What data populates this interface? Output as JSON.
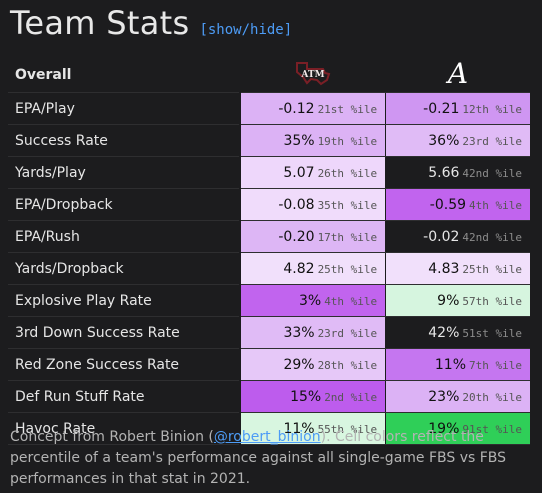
{
  "header": {
    "title": "Team Stats",
    "toggle_label": "[show/hide]"
  },
  "table": {
    "section_label": "Overall",
    "teams": [
      {
        "icon": "texas-am-logo-icon",
        "color": "#7a1f26",
        "logo_text": "ATM"
      },
      {
        "icon": "alabama-logo-icon",
        "color": "#ffffff",
        "logo_text": "A"
      }
    ],
    "rows": [
      {
        "metric": "EPA/Play",
        "a": {
          "value": "-0.12",
          "pct": "21st %ile",
          "bg": "#dcb2f5"
        },
        "b": {
          "value": "-0.21",
          "pct": "12th %ile",
          "bg": "#cf96f2"
        }
      },
      {
        "metric": "Success Rate",
        "a": {
          "value": "35%",
          "pct": "19th %ile",
          "bg": "#dcb2f5"
        },
        "b": {
          "value": "36%",
          "pct": "23rd %ile",
          "bg": "#e0bbf6"
        }
      },
      {
        "metric": "Yards/Play",
        "a": {
          "value": "5.07",
          "pct": "26th %ile",
          "bg": "#eed7fb"
        },
        "b": {
          "value": "5.66",
          "pct": "42nd %ile",
          "bg": ""
        }
      },
      {
        "metric": "EPA/Dropback",
        "a": {
          "value": "-0.08",
          "pct": "35th %ile",
          "bg": "#f0dcfb"
        },
        "b": {
          "value": "-0.59",
          "pct": "4th %ile",
          "bg": "#c164ee"
        }
      },
      {
        "metric": "EPA/Rush",
        "a": {
          "value": "-0.20",
          "pct": "17th %ile",
          "bg": "#ddb6f5"
        },
        "b": {
          "value": "-0.02",
          "pct": "42nd %ile",
          "bg": ""
        }
      },
      {
        "metric": "Yards/Dropback",
        "a": {
          "value": "4.82",
          "pct": "25th %ile",
          "bg": "#f1e0fb"
        },
        "b": {
          "value": "4.83",
          "pct": "25th %ile",
          "bg": "#f1e0fb"
        }
      },
      {
        "metric": "Explosive Play Rate",
        "a": {
          "value": "3%",
          "pct": "4th %ile",
          "bg": "#c164ee"
        },
        "b": {
          "value": "9%",
          "pct": "57th %ile",
          "bg": "#d6f5df"
        }
      },
      {
        "metric": "3rd Down Success Rate",
        "a": {
          "value": "33%",
          "pct": "23rd %ile",
          "bg": "#e0bbf6"
        },
        "b": {
          "value": "42%",
          "pct": "51st %ile",
          "bg": ""
        }
      },
      {
        "metric": "Red Zone Success Rate",
        "a": {
          "value": "29%",
          "pct": "28th %ile",
          "bg": "#e6c8f8"
        },
        "b": {
          "value": "11%",
          "pct": "7th %ile",
          "bg": "#c576f0"
        }
      },
      {
        "metric": "Def Run Stuff Rate",
        "a": {
          "value": "15%",
          "pct": "2nd %ile",
          "bg": "#bd5ced"
        },
        "b": {
          "value": "23%",
          "pct": "20th %ile",
          "bg": "#dcb2f5"
        }
      },
      {
        "metric": "Havoc Rate",
        "a": {
          "value": "11%",
          "pct": "55th %ile",
          "bg": "#d8f6e0"
        },
        "b": {
          "value": "19%",
          "pct": "91st %ile",
          "bg": "#2fcf58"
        }
      }
    ]
  },
  "footnote": {
    "prefix": "Concept from Robert Binion (",
    "link": "@robert_binion",
    "suffix": "). Cell colors reflect the percentile of a team's performance against all single-game FBS vs FBS performances in that stat in 2021."
  }
}
